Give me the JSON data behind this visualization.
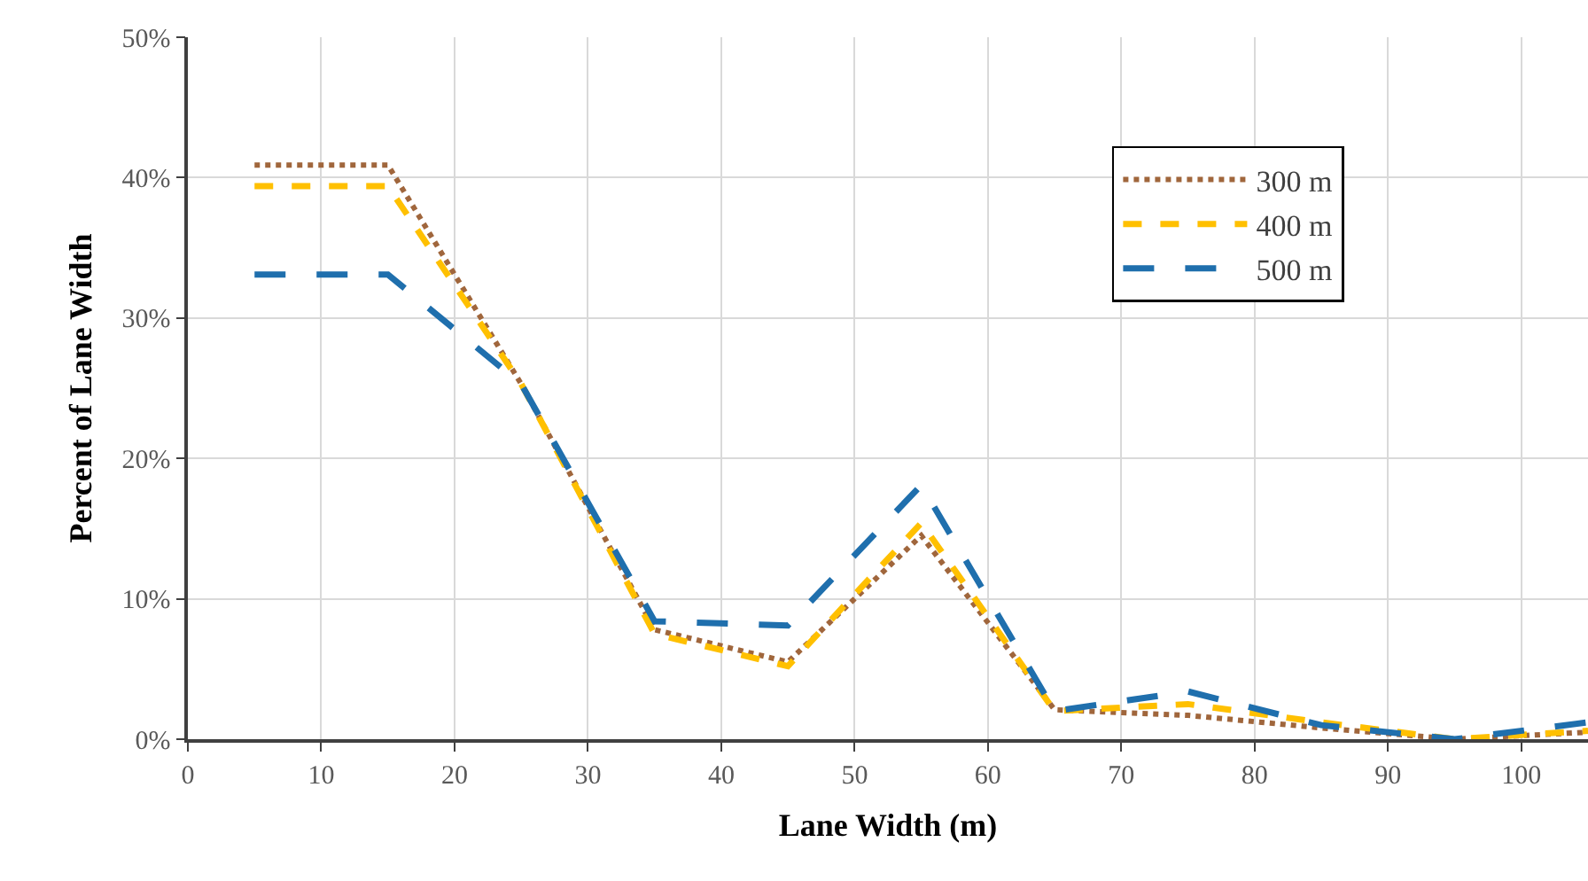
{
  "chart_data": {
    "type": "line",
    "xlabel": "Lane Width (m)",
    "ylabel": "Percent of Lane Width",
    "x": [
      5,
      15,
      25,
      35,
      45,
      55,
      65,
      75,
      85,
      95,
      105
    ],
    "xlim": [
      0,
      105
    ],
    "xticks": [
      0,
      10,
      20,
      30,
      40,
      50,
      60,
      70,
      80,
      90,
      100
    ],
    "ylim": [
      0,
      50
    ],
    "yticks": [
      {
        "value": 0,
        "label": "0%"
      },
      {
        "value": 10,
        "label": "10%"
      },
      {
        "value": 20,
        "label": "20%"
      },
      {
        "value": 30,
        "label": "30%"
      },
      {
        "value": 40,
        "label": "40%"
      },
      {
        "value": 50,
        "label": "50%"
      }
    ],
    "grid": true,
    "legend": "top right",
    "marker": "none",
    "series": [
      {
        "name": "300 m",
        "color": "#a0663c",
        "line_style": "dotted",
        "values": [
          40.9,
          40.9,
          25.3,
          7.8,
          5.5,
          14.5,
          2.1,
          1.7,
          0.8,
          0,
          0.5
        ]
      },
      {
        "name": "400 m",
        "color": "#ffc000",
        "line_style": "dashed",
        "values": [
          39.4,
          39.4,
          25.3,
          7.5,
          5.2,
          15.4,
          2.0,
          2.5,
          1.2,
          0,
          0.6
        ]
      },
      {
        "name": "500 m",
        "color": "#1f6fad",
        "line_style": "longdash",
        "values": [
          33.1,
          33.1,
          25.3,
          8.4,
          8.1,
          18.1,
          2.0,
          3.4,
          1.0,
          0,
          1.2
        ]
      }
    ]
  }
}
